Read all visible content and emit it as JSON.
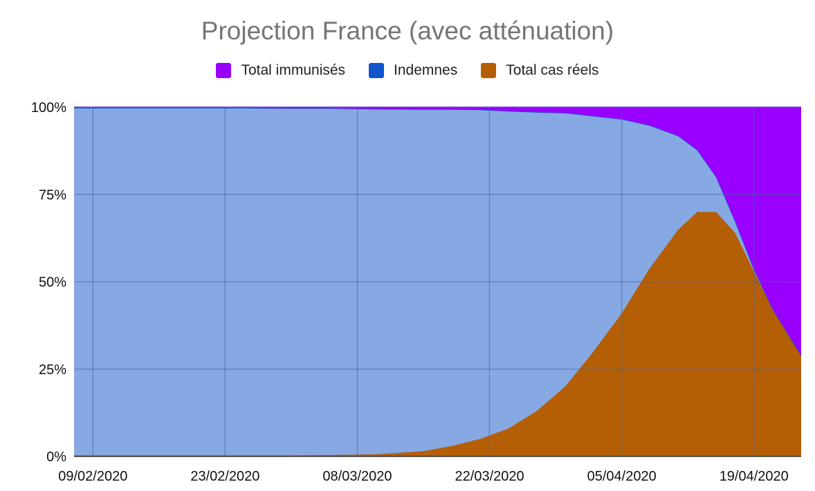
{
  "chart_data": {
    "type": "area",
    "title": "Projection France (avec atténuation)",
    "stacked_percent": true,
    "x_ticks": [
      "09/02/2020",
      "23/02/2020",
      "08/03/2020",
      "22/03/2020",
      "05/04/2020",
      "19/04/2020"
    ],
    "x_range": [
      "07/02/2020",
      "24/04/2020"
    ],
    "y_ticks": [
      "0%",
      "25%",
      "50%",
      "75%",
      "100%"
    ],
    "ylim": [
      0,
      100
    ],
    "grid": true,
    "legend": "top",
    "x": [
      "07/02/2020",
      "10/02/2020",
      "15/02/2020",
      "20/02/2020",
      "25/02/2020",
      "01/03/2020",
      "05/03/2020",
      "10/03/2020",
      "15/03/2020",
      "18/03/2020",
      "21/03/2020",
      "24/03/2020",
      "27/03/2020",
      "30/03/2020",
      "02/04/2020",
      "05/04/2020",
      "08/04/2020",
      "11/04/2020",
      "13/04/2020",
      "15/04/2020",
      "17/04/2020",
      "19/04/2020",
      "21/04/2020",
      "24/04/2020"
    ],
    "series": [
      {
        "name": "Total cas réels",
        "color": "#b45f06",
        "values": [
          0.3,
          0.3,
          0.3,
          0.3,
          0.3,
          0.3,
          0.4,
          0.6,
          1.5,
          3,
          5,
          8,
          13,
          20,
          30,
          41,
          54,
          65,
          70,
          70,
          64,
          53,
          42,
          29
        ]
      },
      {
        "name": "Indemnes",
        "color": "#1155cc",
        "fill": "#86a9e3",
        "values": [
          99.5,
          99.5,
          99.5,
          99.5,
          99.5,
          99.4,
          99.3,
          98.9,
          97.9,
          96.4,
          94.3,
          90.9,
          85.6,
          78.4,
          67.5,
          55.6,
          40.8,
          26.8,
          17.8,
          10.1,
          3.5,
          0.7,
          0.2,
          0
        ]
      },
      {
        "name": "Total immunisés",
        "color": "#9900ff",
        "values": [
          0.2,
          0.2,
          0.2,
          0.2,
          0.2,
          0.3,
          0.3,
          0.5,
          0.6,
          0.6,
          0.7,
          1.1,
          1.4,
          1.6,
          2.5,
          3.4,
          5.2,
          8.2,
          12.2,
          19.9,
          32.5,
          46.3,
          57.8,
          71
        ]
      }
    ]
  }
}
